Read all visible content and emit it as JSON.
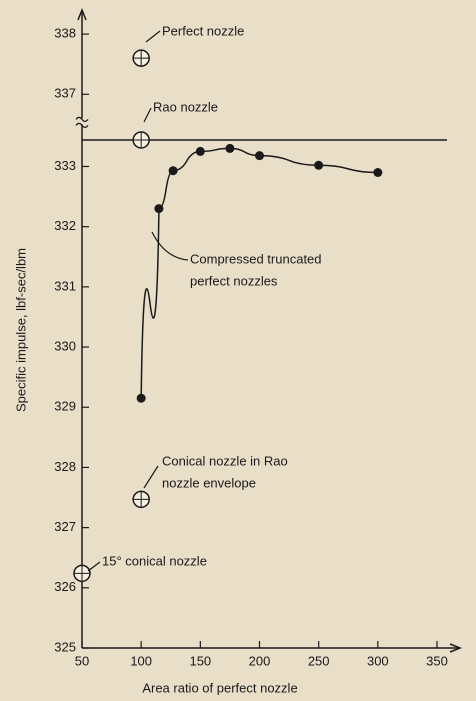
{
  "chart_data": {
    "type": "line",
    "x_label": "Area ratio of perfect nozzle",
    "y_label": "Specific impulse, lbf-sec/lbm",
    "xlim": [
      50,
      370
    ],
    "xticks": [
      50,
      100,
      150,
      200,
      250,
      300,
      350
    ],
    "ylim": [
      325,
      338.4
    ],
    "y_break": [
      333.7,
      336.6
    ],
    "yticks": [
      325,
      326,
      327,
      328,
      329,
      330,
      331,
      332,
      333,
      337,
      338
    ],
    "color": "#1a1a1a",
    "series": [
      {
        "annotation": [
          "Compressed truncated",
          "perfect nozzles"
        ],
        "x": [
          100,
          115,
          127,
          150,
          175,
          200,
          250,
          300
        ],
        "values": [
          329.15,
          332.3,
          332.93,
          333.25,
          333.3,
          333.18,
          333.02,
          332.9
        ]
      }
    ],
    "points": [
      {
        "annotation": [
          "Perfect nozzle"
        ],
        "x": 100,
        "value": 337.6
      },
      {
        "annotation": [
          "Rao nozzle"
        ],
        "x": 100,
        "value": 333.44
      },
      {
        "annotation": [
          "Conical nozzle in Rao",
          "nozzle envelope"
        ],
        "x": 100,
        "value": 327.47
      },
      {
        "annotation": [
          "15° conical nozzle"
        ],
        "x": 50,
        "value": 326.24
      }
    ]
  }
}
